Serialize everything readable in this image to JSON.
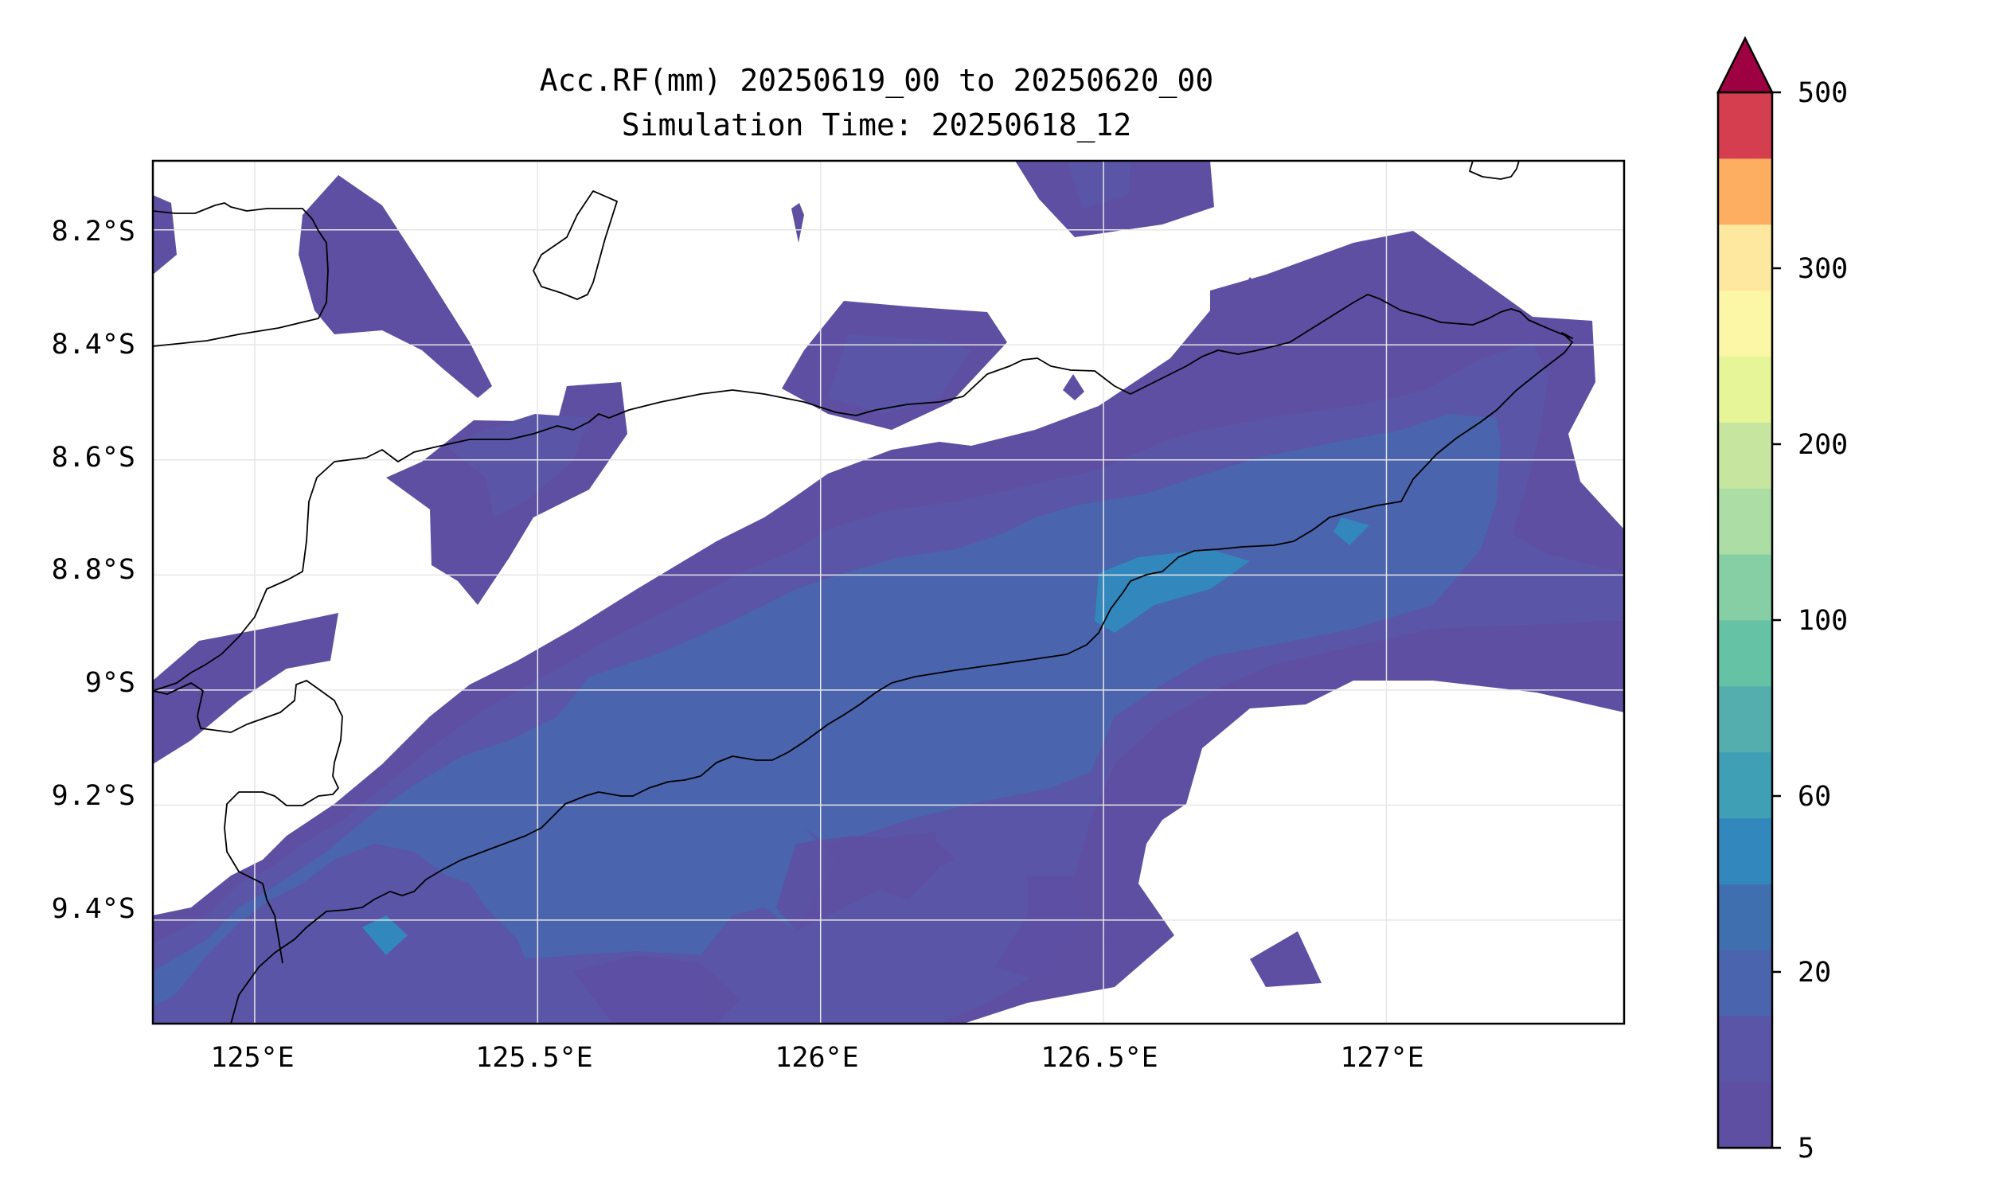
{
  "title": {
    "line1": "Acc.RF(mm) 20250619_00 to 20250620_00",
    "line2": "Simulation Time: 20250618_12"
  },
  "map": {
    "type": "filled-contour",
    "variable": "Accumulated rainfall (mm)",
    "extent": {
      "lon": [
        124.82,
        127.42
      ],
      "lat": [
        -9.58,
        -8.08
      ]
    },
    "x_ticks": [
      {
        "value": 125.0,
        "label": "125°E"
      },
      {
        "value": 125.5,
        "label": "125.5°E"
      },
      {
        "value": 126.0,
        "label": "126°E"
      },
      {
        "value": 126.5,
        "label": "126.5°E"
      },
      {
        "value": 127.0,
        "label": "127°E"
      }
    ],
    "y_ticks": [
      {
        "value": -8.2,
        "label": "8.2°S"
      },
      {
        "value": -8.4,
        "label": "8.4°S"
      },
      {
        "value": -8.6,
        "label": "8.6°S"
      },
      {
        "value": -8.8,
        "label": "8.8°S"
      },
      {
        "value": -9.0,
        "label": "9°S"
      },
      {
        "value": -9.2,
        "label": "9.2°S"
      },
      {
        "value": -9.4,
        "label": "9.4°S"
      }
    ],
    "grid": true
  },
  "colorbar": {
    "extend": "max",
    "over_color": "#9e0142",
    "levels": [
      5,
      10,
      20,
      40,
      50,
      60,
      80,
      100,
      150,
      200,
      250,
      300,
      350,
      500
    ],
    "colors": [
      "#5e4fa2",
      "#4a64ad",
      "#3288bd",
      "#3f9fb5",
      "#54aead",
      "#66c2a5",
      "#86cfa5",
      "#abdda4",
      "#e6f598",
      "#fee08b",
      "#fdae61",
      "#d53e4f",
      "#9e0142"
    ],
    "tick_labels": [
      {
        "level": 5,
        "label": "5"
      },
      {
        "level": 20,
        "label": "20"
      },
      {
        "level": 60,
        "label": "60"
      },
      {
        "level": 100,
        "label": "100"
      },
      {
        "level": 200,
        "label": "200"
      },
      {
        "level": 300,
        "label": "300"
      },
      {
        "level": 500,
        "label": "500"
      }
    ],
    "band_colors": [
      "#5e4fa2",
      "#5a55a6",
      "#4a64ad",
      "#3f6faf",
      "#3288bd",
      "#3f9fb5",
      "#54aead",
      "#66c2a5",
      "#86cfa5",
      "#abdda4",
      "#c6e6a0",
      "#e6f598",
      "#fbf7a6",
      "#fee8a0",
      "#fdae61",
      "#d53e4f"
    ]
  }
}
